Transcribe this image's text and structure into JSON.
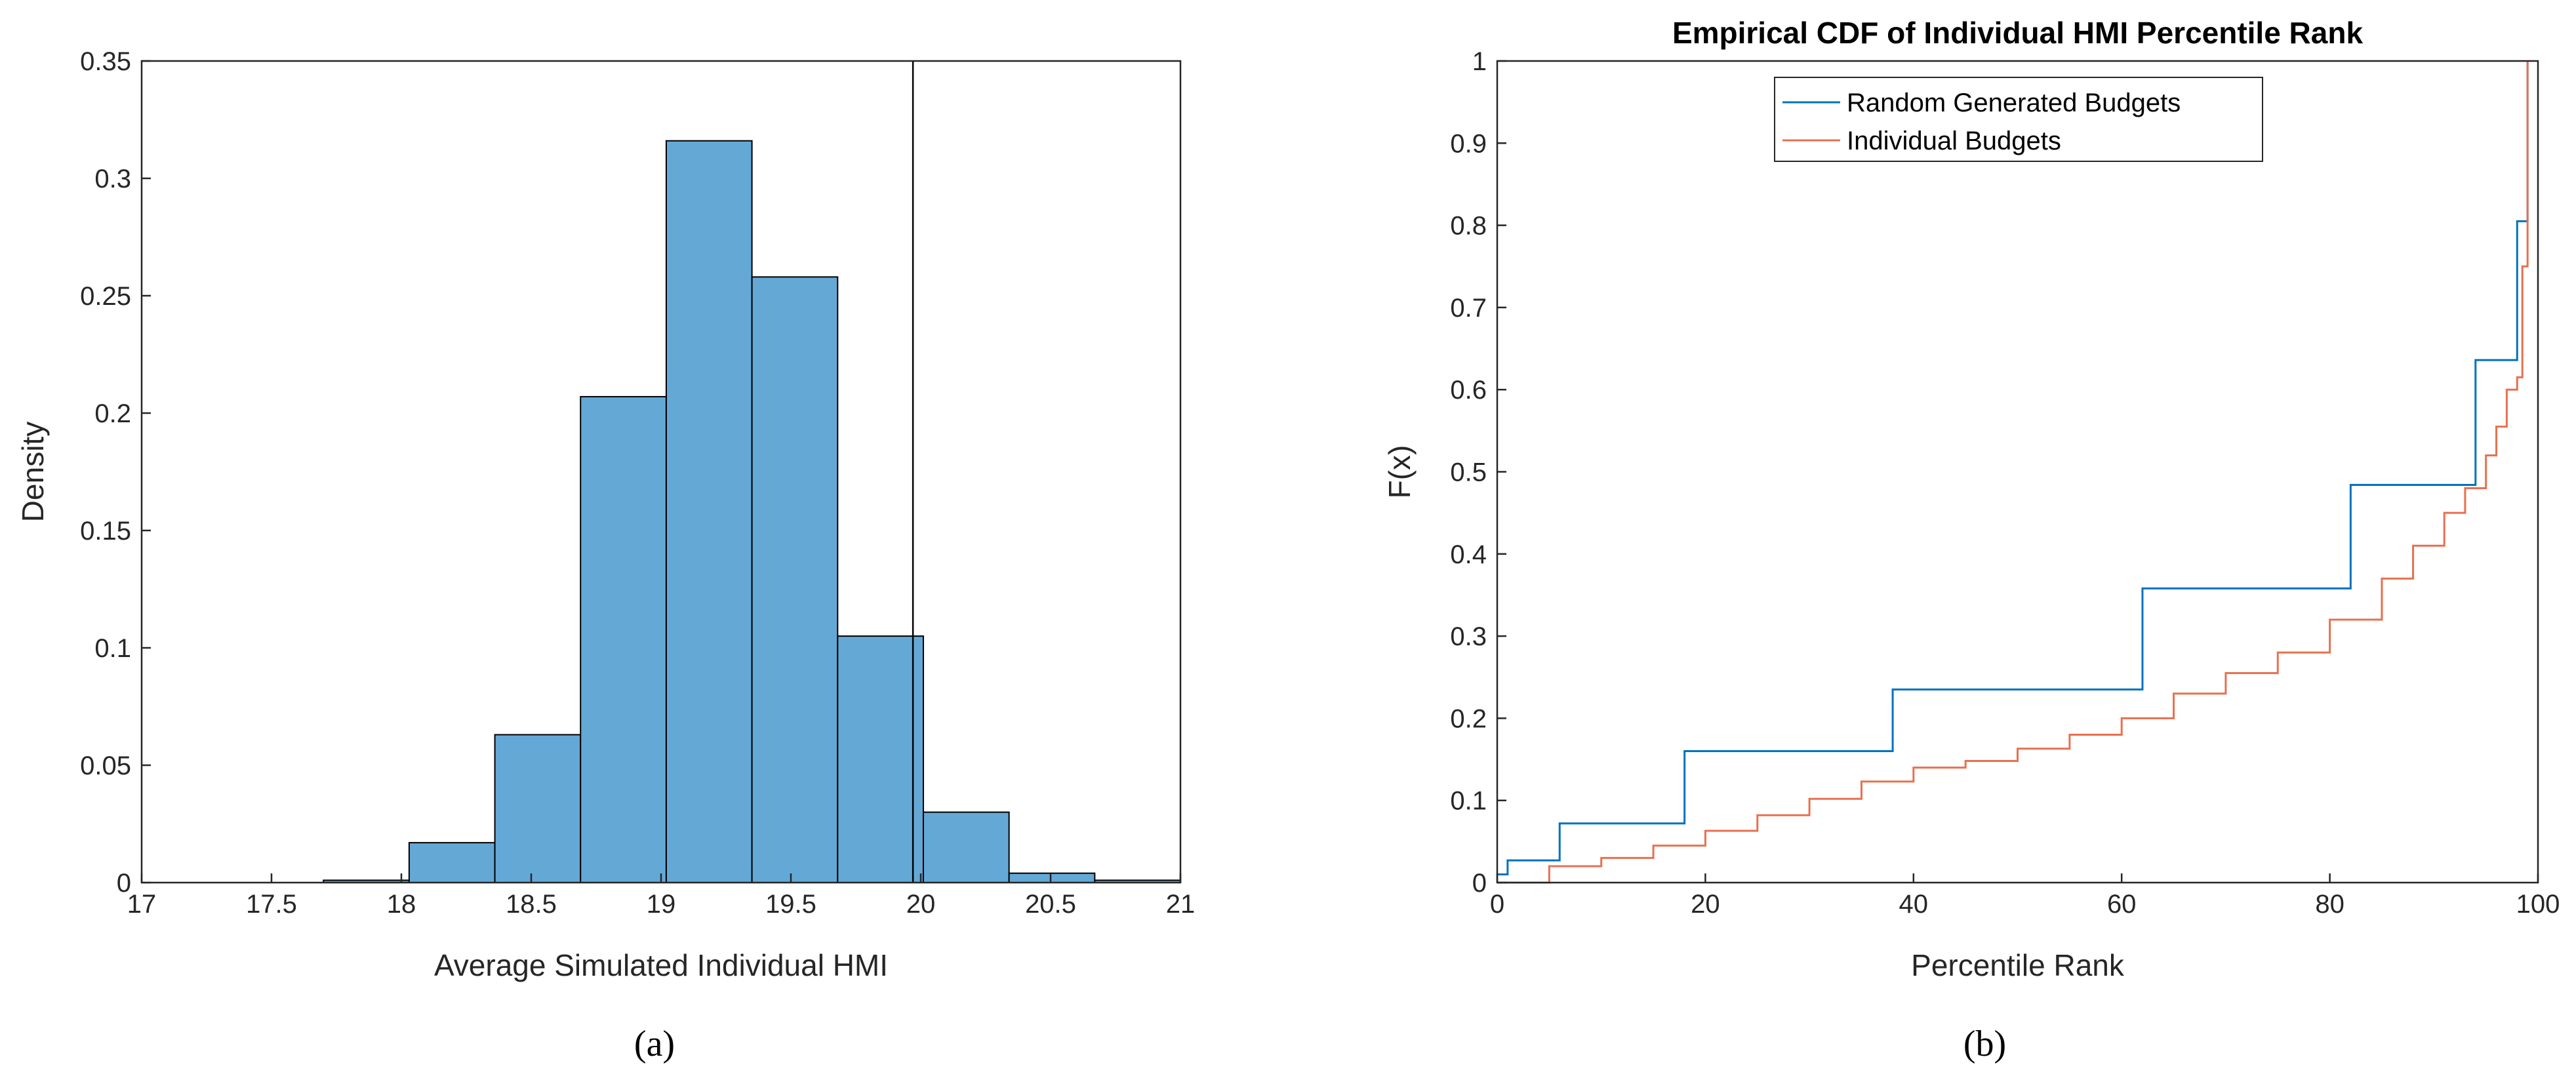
{
  "chart_data": [
    {
      "type": "histogram",
      "caption": "(a)",
      "xlabel": "Average Simulated Individual HMI",
      "ylabel": "Density",
      "xlim": [
        17,
        21
      ],
      "ylim": [
        0,
        0.35
      ],
      "xticks": [
        "17",
        "17.5",
        "18",
        "18.5",
        "19",
        "19.5",
        "20",
        "20.5",
        "21"
      ],
      "yticks": [
        "0",
        "0.05",
        "0.1",
        "0.15",
        "0.2",
        "0.25",
        "0.3",
        "0.35"
      ],
      "bin_edges": [
        17.7,
        18.03,
        18.36,
        18.69,
        19.02,
        19.35,
        19.68,
        20.01,
        20.34,
        20.67,
        21.0
      ],
      "values": [
        0.001,
        0.017,
        0.063,
        0.207,
        0.316,
        0.258,
        0.105,
        0.03,
        0.004,
        0.001
      ],
      "vertical_line_x": 19.97,
      "bar_color": "#64a8d6",
      "edge_color": "#000000",
      "grid": false
    },
    {
      "type": "line",
      "caption": "(b)",
      "title": "Empirical CDF of Individual HMI Percentile Rank",
      "xlabel": "Percentile Rank",
      "ylabel": "F(x)",
      "xlim": [
        0,
        100
      ],
      "ylim": [
        0,
        1
      ],
      "xticks": [
        "0",
        "20",
        "40",
        "60",
        "80",
        "100"
      ],
      "yticks": [
        "0",
        "0.1",
        "0.2",
        "0.3",
        "0.4",
        "0.5",
        "0.6",
        "0.7",
        "0.8",
        "0.9",
        "1"
      ],
      "legend_position": "top-center",
      "grid": false,
      "series": [
        {
          "name": "Random Generated Budgets",
          "color": "#0072bd",
          "step": true,
          "x": [
            0,
            1,
            1,
            6,
            6,
            18,
            18,
            38,
            38,
            62,
            62,
            82,
            82,
            94,
            94,
            98,
            98,
            99,
            99
          ],
          "y": [
            0.01,
            0.01,
            0.027,
            0.027,
            0.072,
            0.072,
            0.16,
            0.16,
            0.235,
            0.235,
            0.358,
            0.358,
            0.484,
            0.484,
            0.636,
            0.636,
            0.805,
            0.805,
            1.0
          ]
        },
        {
          "name": "Individual Budgets",
          "color": "#e8704f",
          "step": true,
          "x": [
            0,
            5,
            10,
            15,
            20,
            25,
            30,
            35,
            40,
            45,
            50,
            55,
            60,
            65,
            70,
            75,
            80,
            85,
            88,
            91,
            93,
            95,
            96,
            97,
            98,
            98.5,
            99
          ],
          "y": [
            0.0,
            0.02,
            0.03,
            0.045,
            0.063,
            0.082,
            0.102,
            0.123,
            0.14,
            0.148,
            0.163,
            0.18,
            0.2,
            0.23,
            0.255,
            0.28,
            0.32,
            0.37,
            0.41,
            0.45,
            0.48,
            0.52,
            0.555,
            0.6,
            0.615,
            0.75,
            1.0
          ]
        }
      ]
    }
  ]
}
